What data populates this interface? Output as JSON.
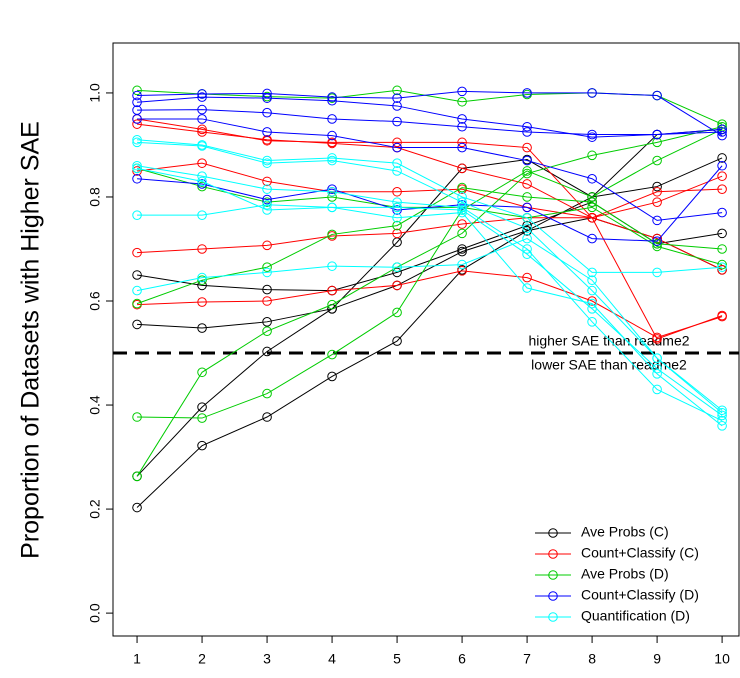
{
  "chart_data": {
    "type": "line",
    "y_label": "Proportion of Datasets with Higher SAE",
    "x": [
      1,
      2,
      3,
      4,
      5,
      6,
      7,
      8,
      9,
      10
    ],
    "xlim": [
      0.63,
      10.26
    ],
    "ylim": [
      -0.044,
      1.096
    ],
    "xticks": [
      1,
      2,
      3,
      4,
      5,
      6,
      7,
      8,
      9,
      10
    ],
    "yticks": [
      {
        "value": 0,
        "label": "0.0"
      },
      {
        "value": 0.2,
        "label": "0.2"
      },
      {
        "value": 0.4,
        "label": "0.4"
      },
      {
        "value": 0.6,
        "label": "0.6"
      },
      {
        "value": 0.8,
        "label": "0.8"
      },
      {
        "value": 1,
        "label": "1.0"
      }
    ],
    "grid": false,
    "legend": "bottomright",
    "reference_line": 0.5,
    "annotations": [
      "higher SAE than readme2",
      "lower SAE than readme2"
    ],
    "series": [
      {
        "name": "Ave Probs (C)",
        "color": "#000000",
        "lines": [
          [
            0.203,
            0.322,
            0.377,
            0.455,
            0.523,
            0.66,
            0.735,
            0.76,
            0.72,
            0.66
          ],
          [
            0.263,
            0.396,
            0.503,
            0.585,
            0.713,
            0.855,
            0.872,
            0.8,
            0.82,
            0.875
          ],
          [
            0.555,
            0.548,
            0.56,
            0.585,
            0.63,
            0.695,
            0.735,
            0.8,
            0.92,
            0.93
          ],
          [
            0.65,
            0.63,
            0.622,
            0.62,
            0.655,
            0.7,
            0.745,
            0.79,
            0.71,
            0.73
          ]
        ]
      },
      {
        "name": "Count+Classify (C)",
        "color": "#ff0000",
        "lines": [
          [
            0.94,
            0.925,
            0.91,
            0.903,
            0.895,
            0.855,
            0.825,
            0.76,
            0.72,
            0.66
          ],
          [
            0.95,
            0.93,
            0.908,
            0.905,
            0.905,
            0.905,
            0.895,
            0.76,
            0.81,
            0.815
          ],
          [
            0.85,
            0.865,
            0.83,
            0.81,
            0.81,
            0.815,
            0.78,
            0.76,
            0.79,
            0.84
          ],
          [
            0.693,
            0.7,
            0.707,
            0.725,
            0.73,
            0.748,
            0.76,
            0.76,
            0.527,
            0.572
          ],
          [
            0.593,
            0.598,
            0.6,
            0.62,
            0.63,
            0.658,
            0.645,
            0.6,
            0.53,
            0.57
          ]
        ]
      },
      {
        "name": "Ave Probs (D)",
        "color": "#00cc00",
        "lines": [
          [
            1.005,
            0.998,
            0.993,
            0.99,
            1.005,
            0.983,
            0.997,
            1.0,
            0.995,
            0.94
          ],
          [
            0.263,
            0.463,
            0.542,
            0.593,
            0.665,
            0.73,
            0.845,
            0.88,
            0.905,
            0.935
          ],
          [
            0.377,
            0.375,
            0.422,
            0.497,
            0.578,
            0.775,
            0.85,
            0.8,
            0.87,
            0.93
          ],
          [
            0.595,
            0.64,
            0.665,
            0.728,
            0.745,
            0.818,
            0.8,
            0.79,
            0.71,
            0.7
          ],
          [
            0.855,
            0.82,
            0.79,
            0.8,
            0.78,
            0.78,
            0.76,
            0.78,
            0.705,
            0.67
          ]
        ]
      },
      {
        "name": "Count+Classify (D)",
        "color": "#0000ff",
        "lines": [
          [
            0.995,
            0.998,
            0.999,
            0.992,
            0.99,
            1.003,
            1.0,
            1.0,
            0.995,
            0.918
          ],
          [
            0.982,
            0.992,
            0.99,
            0.985,
            0.975,
            0.95,
            0.935,
            0.915,
            0.92,
            0.93
          ],
          [
            0.967,
            0.968,
            0.962,
            0.95,
            0.945,
            0.935,
            0.925,
            0.92,
            0.92,
            0.925
          ],
          [
            0.95,
            0.95,
            0.925,
            0.918,
            0.895,
            0.895,
            0.87,
            0.835,
            0.755,
            0.77
          ],
          [
            0.835,
            0.825,
            0.795,
            0.815,
            0.775,
            0.785,
            0.78,
            0.72,
            0.715,
            0.86
          ]
        ]
      },
      {
        "name": "Quantification (D)",
        "color": "#00ffff",
        "lines": [
          [
            0.91,
            0.9,
            0.87,
            0.875,
            0.865,
            0.8,
            0.76,
            0.655,
            0.655,
            0.665
          ],
          [
            0.905,
            0.898,
            0.865,
            0.87,
            0.85,
            0.79,
            0.74,
            0.62,
            0.49,
            0.39
          ],
          [
            0.86,
            0.84,
            0.815,
            0.81,
            0.79,
            0.78,
            0.7,
            0.56,
            0.43,
            0.37
          ],
          [
            0.855,
            0.83,
            0.775,
            0.78,
            0.78,
            0.775,
            0.69,
            0.585,
            0.47,
            0.38
          ],
          [
            0.765,
            0.765,
            0.785,
            0.78,
            0.76,
            0.77,
            0.625,
            0.595,
            0.46,
            0.36
          ],
          [
            0.62,
            0.645,
            0.655,
            0.667,
            0.665,
            0.67,
            0.72,
            0.64,
            0.49,
            0.385
          ]
        ]
      }
    ]
  }
}
